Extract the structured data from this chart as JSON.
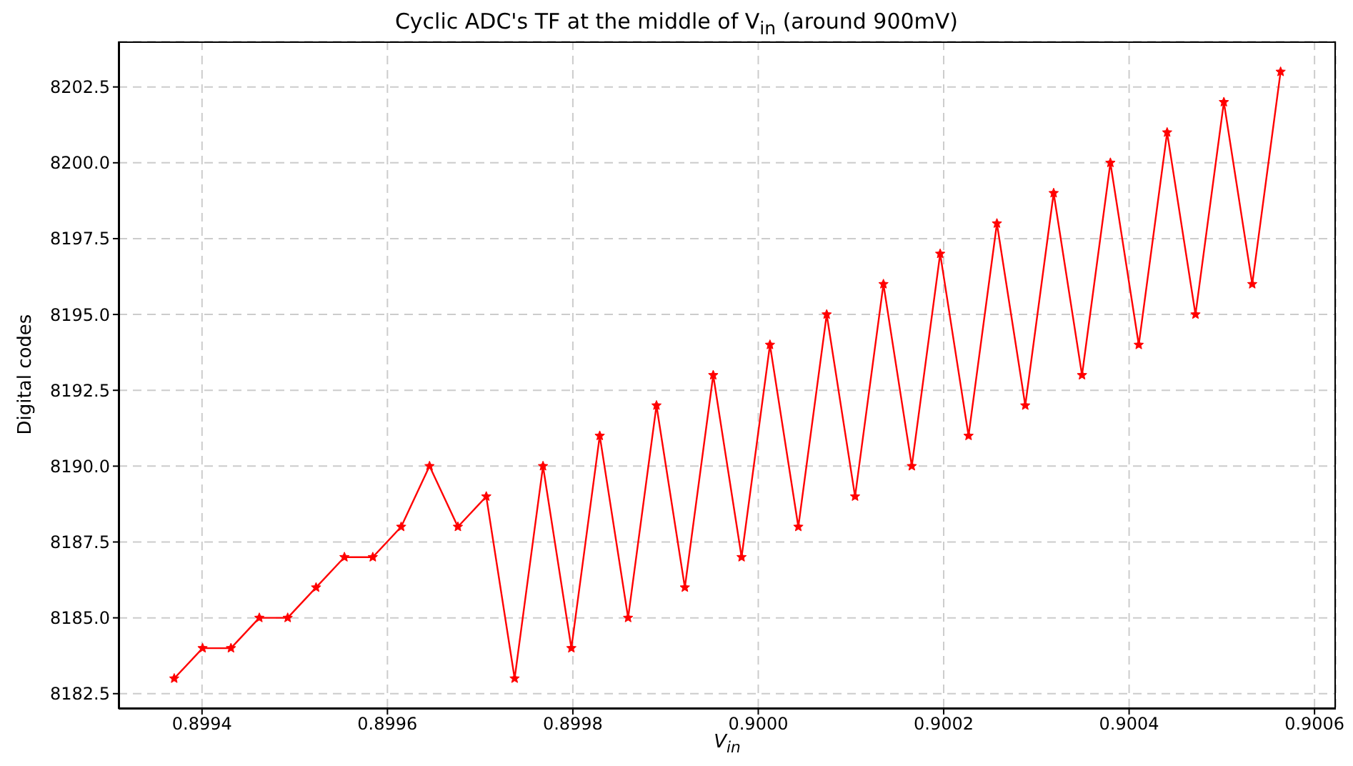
{
  "chart_data": {
    "type": "line",
    "title": "Cyclic ADC's TF at the middle of V$_{in}$ (around 900mV)",
    "xlabel": "V$_{in}$",
    "ylabel": "Digital codes",
    "x": [
      0.89937,
      0.8994006,
      0.8994312,
      0.8994618,
      0.8994924,
      0.899523,
      0.8995536,
      0.8995842,
      0.8996148,
      0.8996454,
      0.899676,
      0.8997066,
      0.8997372,
      0.8997678,
      0.8997984,
      0.899829,
      0.8998596,
      0.8998902,
      0.8999208,
      0.8999514,
      0.899982,
      0.9000126,
      0.9000432,
      0.9000738,
      0.9001044,
      0.900135,
      0.9001656,
      0.9001962,
      0.9002268,
      0.9002574,
      0.900288,
      0.9003186,
      0.9003492,
      0.9003798,
      0.9004104,
      0.900441,
      0.9004716,
      0.9005022,
      0.9005328,
      0.9005634
    ],
    "series": [
      {
        "color": "#ff0000",
        "values": [
          8183,
          8184,
          8184,
          8185,
          8185,
          8186,
          8187,
          8187,
          8188,
          8190,
          8188,
          8189,
          8183,
          8190,
          8184,
          8191,
          8185,
          8192,
          8186,
          8193,
          8187,
          8194,
          8188,
          8195,
          8189,
          8196,
          8190,
          8197,
          8191,
          8198,
          8192,
          8199,
          8193,
          8200,
          8194,
          8201,
          8195,
          8202,
          8196,
          8203
        ]
      }
    ],
    "xlim": [
      0.89931,
      0.900623
    ],
    "ylim": [
      8182,
      8204
    ],
    "xticks": [
      0.8994,
      0.8996,
      0.8998,
      {
        "value": 0.9,
        "label": "0.9000"
      },
      0.9002,
      0.9004,
      0.9006
    ],
    "yticks": [
      8182.5,
      {
        "value": 8185,
        "label": "8185.0"
      },
      8187.5,
      {
        "value": 8190,
        "label": "8190.0"
      },
      8192.5,
      {
        "value": 8195,
        "label": "8195.0"
      },
      8197.5,
      {
        "value": 8200,
        "label": "8200.0"
      },
      8202.5
    ],
    "grid": true,
    "legend": false,
    "marker": "star",
    "line_style": "solid"
  }
}
